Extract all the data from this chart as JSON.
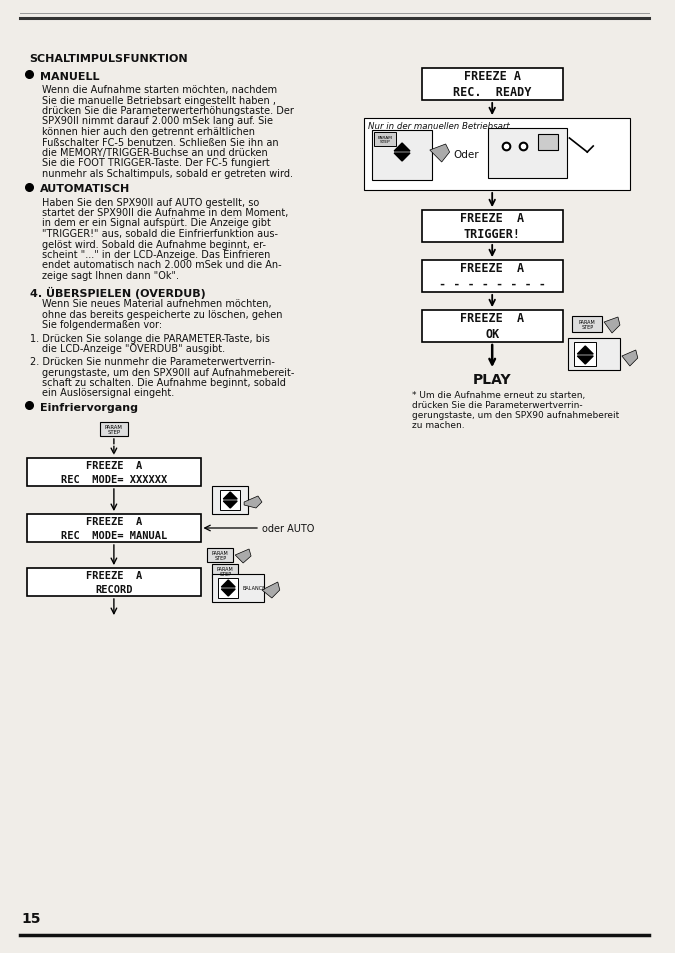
{
  "bg_color": "#f0ede8",
  "page_number": "15",
  "text_color": "#111111",
  "title": "SCHALTIMPULSFUNKTION",
  "section_manuell_title": "MANUELL",
  "section_manuell_body": [
    "Wenn die Aufnahme starten möchten, nachdem",
    "Sie die manuelle Betriebsart eingestellt haben ,",
    "drücken Sie die Parameterwerterhöhungstaste. Der",
    "SPX90II nimmt darauf 2.000 mSek lang auf. Sie",
    "können hier auch den getrennt erhältlichen",
    "Fußschalter FC-5 benutzen. Schließen Sie ihn an",
    "die MEMORY/TRIGGER-Buchse an und drücken",
    "Sie die FOOT TRIGGER-Taste. Der FC-5 fungiert",
    "nunmehr als Schaltimpuls, sobald er getreten wird."
  ],
  "section_auto_title": "AUTOMATISCH",
  "section_auto_body": [
    "Haben Sie den SPX90II auf AUTO gestellt, so",
    "startet der SPX90II die Aufnahme in dem Moment,",
    "in dem er ein Signal aufspürt. Die Anzeige gibt",
    "\"TRIGGER!\" aus, sobald die Einfrierfunktion aus-",
    "gelöst wird. Sobald die Aufnahme beginnt, er-",
    "scheint \"...\" in der LCD-Anzeige. Das Einfrieren",
    "endet automatisch nach 2.000 mSek und die An-",
    "zeige sagt Ihnen dann \"Ok\"."
  ],
  "section_overdub_title": "4. ÜBERSPIELEN (OVERDUB)",
  "section_overdub_body": [
    "Wenn Sie neues Material aufnehmen möchten,",
    "ohne das bereits gespeicherte zu löschen, gehen",
    "Sie folgendermaßen vor:"
  ],
  "section_overdub_1a": "1. Drücken Sie solange die PARAMETER-Taste, bis",
  "section_overdub_1b": "die LCD-Anzeige \"OVERDUB\" ausgibt.",
  "section_overdub_2a": "2. Drücken Sie nunmehr die Parameterwertverrin-",
  "section_overdub_2b": "gerungstaste, um den SPX90II auf Aufnahmebereit-",
  "section_overdub_2c": "schaft zu schalten. Die Aufnahme beginnt, sobald",
  "section_overdub_2d": "ein Auslösersignal eingeht.",
  "section_einfriervorgang_title": "Einfriervorgang",
  "left_box1_l1": "FREEZE  A",
  "left_box1_l2": "REC  MODE= XXXXXX",
  "left_box2_l1": "FREEZE  A",
  "left_box2_l2": "REC  MODE= MANUAL",
  "left_box2_label": "oder AUTO",
  "left_box3_l1": "FREEZE  A",
  "left_box3_l2": "RECORD",
  "right_box1_l1": "FREEZE A",
  "right_box1_l2": "REC.  READY",
  "right_nurin": "Nur in der manuellen Betriebsart",
  "right_oder": "Oder",
  "right_box2_l1": "FREEZE  A",
  "right_box2_l2": "TRIGGER!",
  "right_box3_l1": "FREEZE  A",
  "right_box3_l2": "- - - - - - - -",
  "right_box4_l1": "FREEZE  A",
  "right_box4_l2": "OK",
  "play_label": "PLAY",
  "footnote": [
    "* Um die Aufnahme erneut zu starten,",
    "drücken Sie die Parameterwertverrin-",
    "gerungstaste, um den SPX90 aufnahmebereit",
    "zu machen."
  ]
}
